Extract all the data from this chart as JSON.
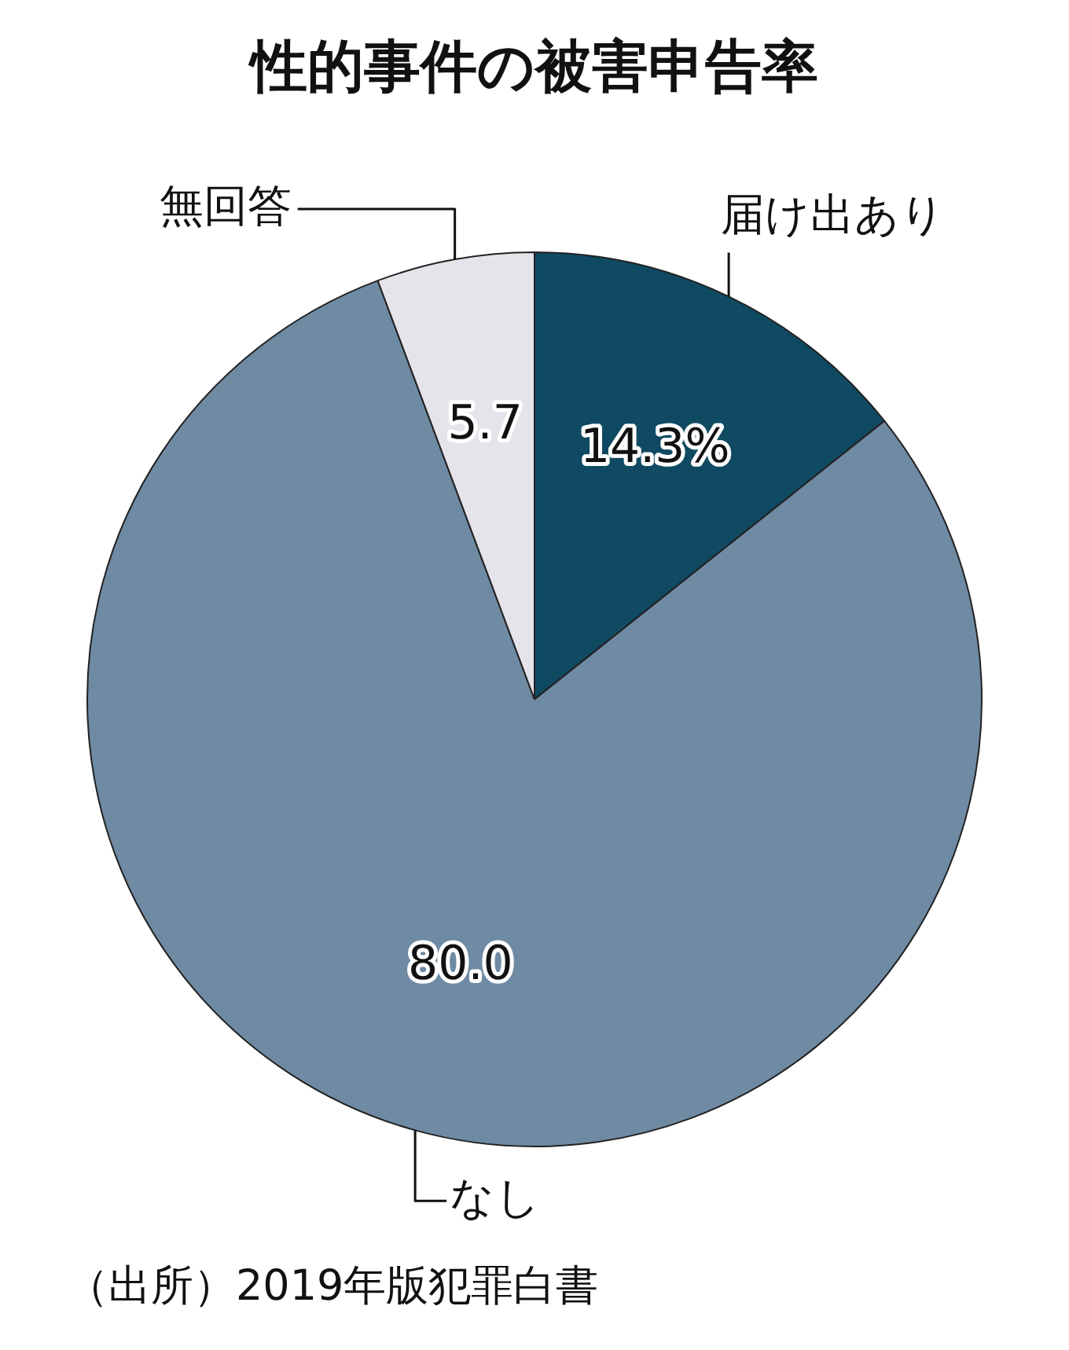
{
  "chart_data": {
    "type": "pie",
    "title": "性的事件の被害申告率",
    "categories": [
      "届け出あり",
      "なし",
      "無回答"
    ],
    "values": [
      14.3,
      80.0,
      5.7
    ],
    "colors": [
      "#0f4a62",
      "#6f8aa3",
      "#e4e4ea"
    ],
    "value_labels": [
      "14.3%",
      "80.0",
      "5.7"
    ],
    "annotations": [
      "（出所）2019年版犯罪白書"
    ],
    "legend": false
  }
}
